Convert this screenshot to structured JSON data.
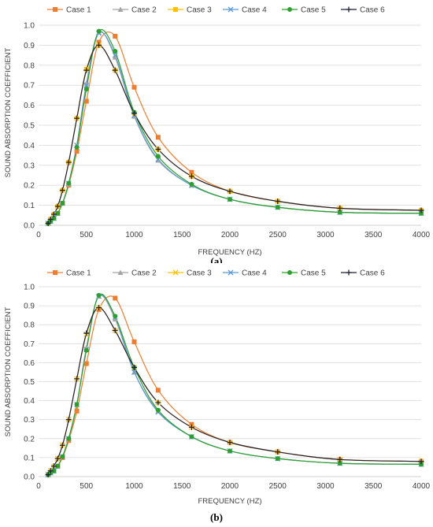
{
  "chart_data": [
    {
      "type": "line",
      "panel_label": "(a)",
      "xlabel": "FREQUENCY (HZ)",
      "ylabel": "SOUND ABSORPTION COEFFICIENT",
      "xlim": [
        0,
        4000
      ],
      "ylim": [
        0,
        1.0
      ],
      "xticks": [
        "0",
        "500",
        "1000",
        "1500",
        "2000",
        "2500",
        "3000",
        "3500",
        "4000"
      ],
      "yticks": [
        "0.0",
        "0.1",
        "0.2",
        "0.3",
        "0.4",
        "0.5",
        "0.6",
        "0.7",
        "0.8",
        "0.9",
        "1.0"
      ],
      "grid": "horizontal",
      "legend_position": "top",
      "x": [
        100,
        125,
        160,
        200,
        250,
        315,
        400,
        500,
        630,
        800,
        1000,
        1250,
        1600,
        2000,
        2500,
        3150,
        4000
      ],
      "series": [
        {
          "name": "Case 1",
          "color": "#ed7d31",
          "marker": "square",
          "values": [
            0.01,
            0.02,
            0.035,
            0.06,
            0.11,
            0.2,
            0.37,
            0.62,
            0.915,
            0.945,
            0.69,
            0.44,
            0.265,
            0.17,
            0.12,
            0.085,
            0.075
          ]
        },
        {
          "name": "Case 2",
          "color": "#a5a5a5",
          "marker": "triangle",
          "values": [
            0.01,
            0.02,
            0.035,
            0.06,
            0.11,
            0.205,
            0.4,
            0.71,
            0.965,
            0.84,
            0.545,
            0.325,
            0.2,
            0.13,
            0.09,
            0.065,
            0.06
          ]
        },
        {
          "name": "Case 3",
          "color": "#ffc000",
          "marker": "square",
          "values": [
            0.01,
            0.03,
            0.055,
            0.095,
            0.175,
            0.315,
            0.535,
            0.78,
            0.9,
            0.775,
            0.56,
            0.38,
            0.245,
            0.17,
            0.12,
            0.085,
            0.075
          ]
        },
        {
          "name": "Case 4",
          "color": "#5b9bd5",
          "marker": "x",
          "values": [
            0.01,
            0.02,
            0.035,
            0.06,
            0.11,
            0.21,
            0.4,
            0.7,
            0.96,
            0.85,
            0.55,
            0.33,
            0.2,
            0.13,
            0.09,
            0.065,
            0.06
          ]
        },
        {
          "name": "Case 5",
          "color": "#2ca02c",
          "marker": "circle",
          "values": [
            0.01,
            0.02,
            0.035,
            0.06,
            0.11,
            0.21,
            0.39,
            0.68,
            0.97,
            0.87,
            0.565,
            0.345,
            0.205,
            0.13,
            0.09,
            0.065,
            0.06
          ]
        },
        {
          "name": "Case 6",
          "color": "#1f1f3a",
          "marker": "plus",
          "values": [
            0.01,
            0.03,
            0.055,
            0.095,
            0.175,
            0.315,
            0.535,
            0.775,
            0.9,
            0.775,
            0.56,
            0.38,
            0.245,
            0.17,
            0.12,
            0.085,
            0.075
          ]
        }
      ]
    },
    {
      "type": "line",
      "panel_label": "(b)",
      "xlabel": "FREQUENCY (HZ)",
      "ylabel": "SOUND ABSORPTION COEFFICIENT",
      "xlim": [
        0,
        4000
      ],
      "ylim": [
        0,
        1.0
      ],
      "xticks": [
        "0",
        "500",
        "1000",
        "1500",
        "2000",
        "2500",
        "3000",
        "3500",
        "4000"
      ],
      "yticks": [
        "0.0",
        "0.1",
        "0.2",
        "0.3",
        "0.4",
        "0.5",
        "0.6",
        "0.7",
        "0.8",
        "0.9",
        "1.0"
      ],
      "grid": "horizontal",
      "legend_position": "top",
      "x": [
        100,
        125,
        160,
        200,
        250,
        315,
        400,
        500,
        630,
        800,
        1000,
        1250,
        1600,
        2000,
        2500,
        3150,
        4000
      ],
      "series": [
        {
          "name": "Case 1",
          "color": "#ed7d31",
          "marker": "square",
          "values": [
            0.01,
            0.02,
            0.03,
            0.055,
            0.1,
            0.19,
            0.345,
            0.595,
            0.88,
            0.94,
            0.71,
            0.455,
            0.275,
            0.18,
            0.13,
            0.09,
            0.08
          ]
        },
        {
          "name": "Case 2",
          "color": "#a5a5a5",
          "marker": "triangle",
          "values": [
            0.01,
            0.02,
            0.03,
            0.055,
            0.105,
            0.2,
            0.38,
            0.68,
            0.95,
            0.83,
            0.55,
            0.345,
            0.21,
            0.135,
            0.095,
            0.07,
            0.065
          ]
        },
        {
          "name": "Case 3",
          "color": "#ffc000",
          "marker": "x",
          "values": [
            0.01,
            0.03,
            0.055,
            0.095,
            0.165,
            0.3,
            0.515,
            0.75,
            0.89,
            0.77,
            0.575,
            0.39,
            0.26,
            0.18,
            0.13,
            0.09,
            0.08
          ]
        },
        {
          "name": "Case 4",
          "color": "#5b9bd5",
          "marker": "x",
          "values": [
            0.01,
            0.02,
            0.03,
            0.055,
            0.105,
            0.2,
            0.38,
            0.67,
            0.95,
            0.84,
            0.55,
            0.34,
            0.21,
            0.135,
            0.095,
            0.07,
            0.065
          ]
        },
        {
          "name": "Case 5",
          "color": "#2ca02c",
          "marker": "circle",
          "values": [
            0.01,
            0.02,
            0.03,
            0.055,
            0.105,
            0.2,
            0.38,
            0.665,
            0.955,
            0.845,
            0.575,
            0.35,
            0.21,
            0.135,
            0.095,
            0.07,
            0.065
          ]
        },
        {
          "name": "Case 6",
          "color": "#1f1f3a",
          "marker": "plus",
          "values": [
            0.01,
            0.03,
            0.055,
            0.095,
            0.165,
            0.3,
            0.515,
            0.755,
            0.89,
            0.77,
            0.575,
            0.39,
            0.26,
            0.18,
            0.13,
            0.09,
            0.08
          ]
        }
      ]
    }
  ]
}
